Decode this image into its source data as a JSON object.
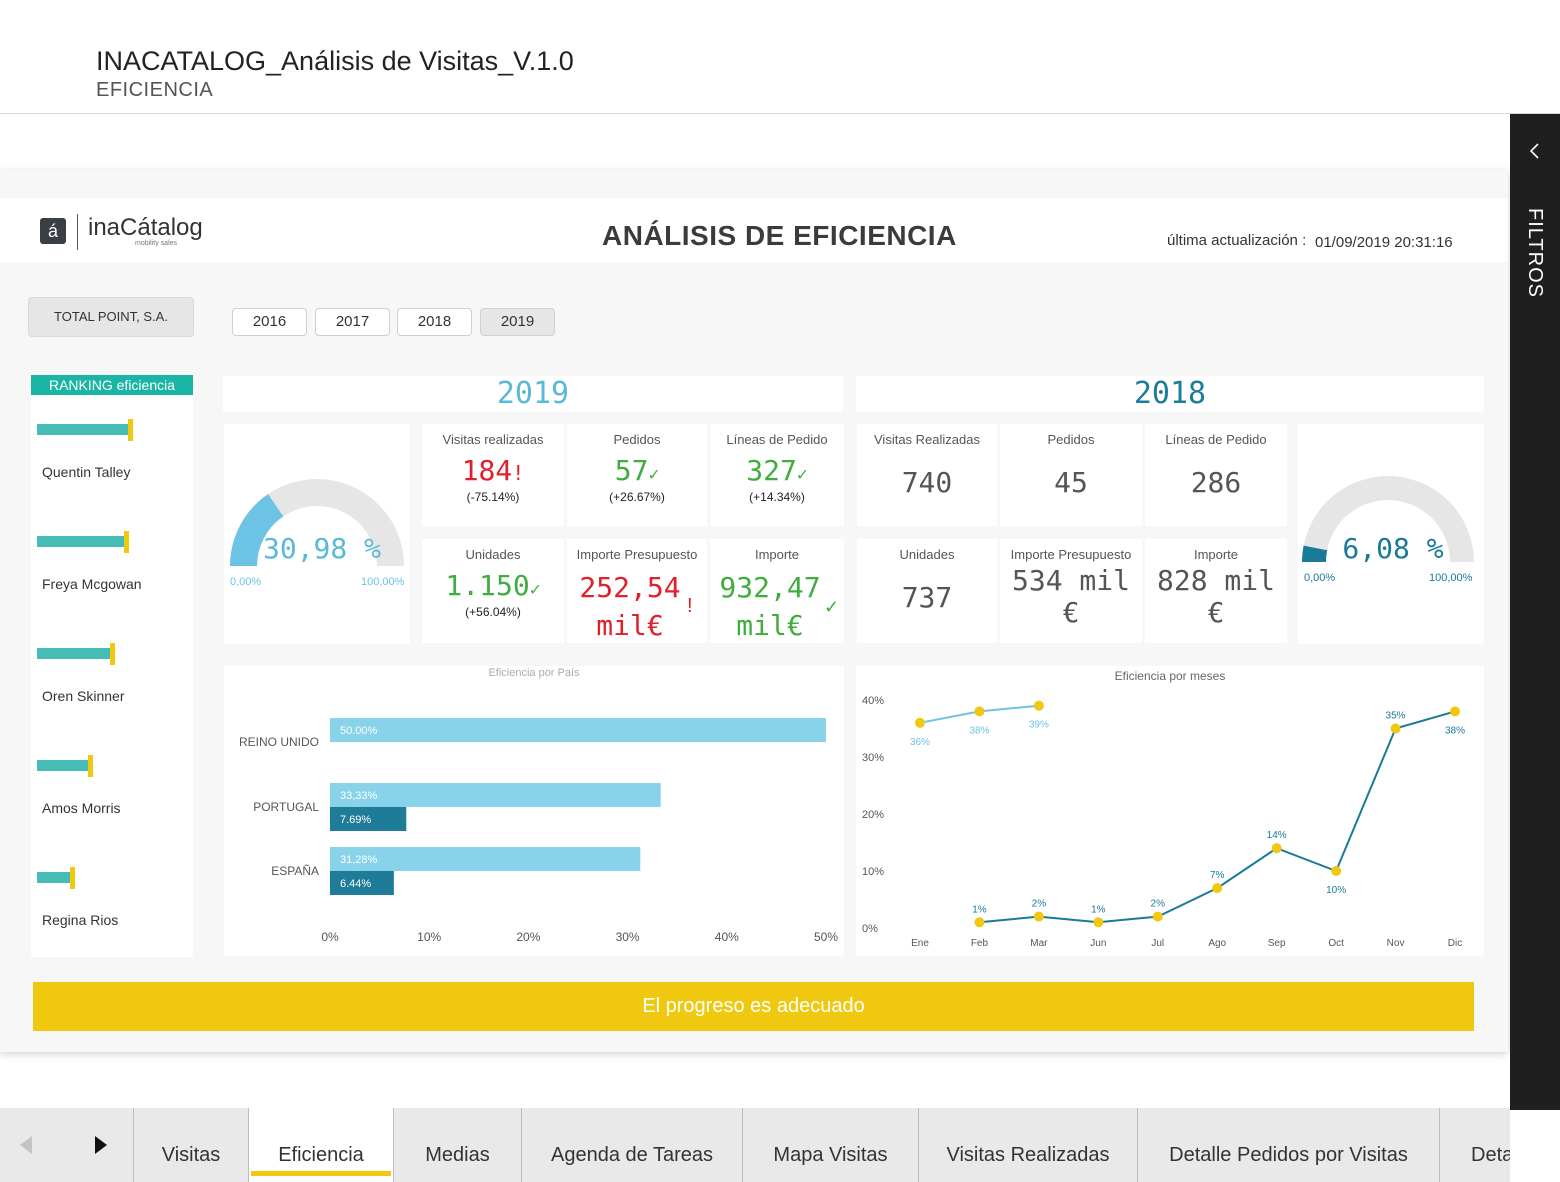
{
  "header": {
    "title": "INACATALOG_Análisis de Visitas_V.1.0",
    "subtitle": "EFICIENCIA"
  },
  "filters": {
    "label": "FILTROS",
    "collapse_icon": "chevron-left-icon"
  },
  "report": {
    "logo_letter": "á",
    "logo_text": "inaCátalog",
    "logo_tagline": "mobility sales",
    "title": "ANÁLISIS DE EFICIENCIA",
    "update_label": "última actualización :",
    "update_value": "01/09/2019 20:31:16"
  },
  "company": "TOTAL POINT, S.A.",
  "years": [
    {
      "label": "2016",
      "selected": false
    },
    {
      "label": "2017",
      "selected": false
    },
    {
      "label": "2018",
      "selected": false
    },
    {
      "label": "2019",
      "selected": true
    }
  ],
  "ranking": {
    "title": "RANKING eficiencia",
    "items": [
      {
        "name": "Quentin Talley",
        "bar_value": 0.58,
        "marker_value": 0.61
      },
      {
        "name": "Freya Mcgowan",
        "bar_value": 0.56,
        "marker_value": 0.59
      },
      {
        "name": "Oren Skinner",
        "bar_value": 0.47,
        "marker_value": 0.5
      },
      {
        "name": "Amos Morris",
        "bar_value": 0.33,
        "marker_value": 0.36
      },
      {
        "name": "Regina Rios",
        "bar_value": 0.22,
        "marker_value": 0.25
      }
    ]
  },
  "year_2019": {
    "title": "2019",
    "color": "#5ab9d6",
    "gauge": {
      "value_label": "30,98 %",
      "value": 30.98,
      "min_label": "0,00%",
      "max_label": "100,00%",
      "fill_color": "#6cc3e6"
    },
    "kpis": [
      {
        "label": "Visitas realizadas",
        "value": "184",
        "mark": "!",
        "delta": "(-75.14%)",
        "status": "red"
      },
      {
        "label": "Pedidos",
        "value": "57",
        "mark": "✓",
        "delta": "(+26.67%)",
        "status": "green"
      },
      {
        "label": "Líneas de Pedido",
        "value": "327",
        "mark": "✓",
        "delta": "(+14.34%)",
        "status": "green"
      },
      {
        "label": "Unidades",
        "value": "1.150",
        "mark": "✓",
        "delta": "(+56.04%)",
        "status": "green"
      },
      {
        "label": "Importe Presupuesto",
        "value": "252,54 mil€",
        "mark": "!",
        "delta": "",
        "status": "red"
      },
      {
        "label": "Importe",
        "value": "932,47 mil€",
        "mark": "✓",
        "delta": "",
        "status": "green"
      }
    ]
  },
  "year_2018": {
    "title": "2018",
    "color": "#1c7c9c",
    "gauge": {
      "value_label": "6,08 %",
      "value": 6.08,
      "min_label": "0,00%",
      "max_label": "100,00%",
      "fill_color": "#1a7a99"
    },
    "kpis": [
      {
        "label": "Visitas Realizadas",
        "value": "740"
      },
      {
        "label": "Pedidos",
        "value": "45"
      },
      {
        "label": "Líneas de Pedido",
        "value": "286"
      },
      {
        "label": "Unidades",
        "value": "737"
      },
      {
        "label": "Importe Presupuesto",
        "value": "534 mil €"
      },
      {
        "label": "Importe",
        "value": "828 mil €"
      }
    ]
  },
  "chart_data": [
    {
      "type": "bar",
      "title": "Eficiencia por País",
      "categories": [
        "REINO UNIDO",
        "PORTUGAL",
        "ESPAÑA"
      ],
      "series": [
        {
          "values": [
            50.0,
            33.33,
            31.28
          ],
          "labels": [
            "50.00%",
            "33,33%",
            "31,28%"
          ],
          "color": "#88d2ea"
        },
        {
          "values": [
            null,
            7.69,
            6.44
          ],
          "labels": [
            "",
            "7.69%",
            "6.44%"
          ],
          "color": "#1f7c99"
        }
      ],
      "xlim": [
        0,
        50
      ],
      "xticks": [
        "0%",
        "10%",
        "20%",
        "30%",
        "40%",
        "50%"
      ]
    },
    {
      "type": "line",
      "title": "Eficiencia por meses",
      "x": [
        "Ene",
        "Feb",
        "Mar",
        "Jun",
        "Jul",
        "Ago",
        "Sep",
        "Oct",
        "Nov",
        "Dic"
      ],
      "ylim": [
        0,
        40
      ],
      "yticks": [
        "0%",
        "10%",
        "20%",
        "30%",
        "40%"
      ],
      "series": [
        {
          "values": [
            36,
            38,
            39,
            null,
            null,
            null,
            null,
            null,
            null,
            null
          ],
          "labels": [
            "36%",
            "38%",
            "39%",
            "",
            "",
            "",
            "",
            "",
            "",
            ""
          ],
          "color": "#6cc3e6"
        },
        {
          "values": [
            null,
            1,
            2,
            1,
            2,
            7,
            14,
            10,
            35,
            38
          ],
          "labels": [
            "",
            "1%",
            "2%",
            "1%",
            "2%",
            "7%",
            "14%",
            "10%",
            "35%",
            "38%"
          ],
          "color": "#1a7a99"
        }
      ],
      "marker_color": "#f0c810"
    }
  ],
  "status_banner": "El progreso es adecuado",
  "tabs": [
    {
      "label": "Visitas",
      "active": false
    },
    {
      "label": "Eficiencia",
      "active": true
    },
    {
      "label": "Medias",
      "active": false
    },
    {
      "label": "Agenda de Tareas",
      "active": false
    },
    {
      "label": "Mapa Visitas",
      "active": false
    },
    {
      "label": "Visitas Realizadas",
      "active": false
    },
    {
      "label": "Detalle Pedidos por Visitas",
      "active": false
    },
    {
      "label": "Deta",
      "active": false
    }
  ]
}
